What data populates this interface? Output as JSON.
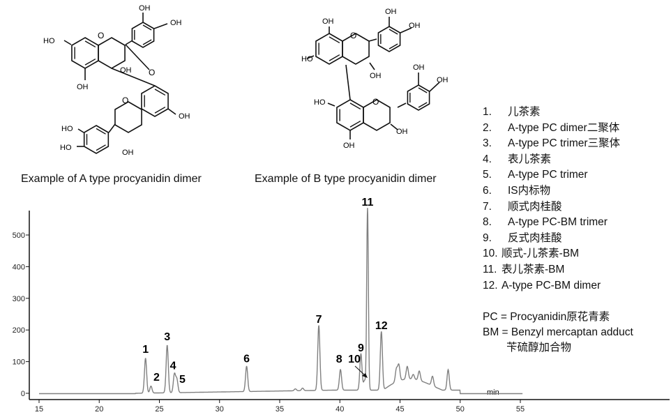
{
  "structures": {
    "a_caption": "Example of A type procyanidin dimer",
    "b_caption": "Example of B type procyanidin dimer",
    "oh_label": "OH",
    "ho_label": "HO"
  },
  "legend": [
    {
      "num": "1.",
      "text": "儿茶素"
    },
    {
      "num": "2.",
      "text": "A-type PC dimer二聚体"
    },
    {
      "num": "3.",
      "text": "A-type PC trimer三聚体"
    },
    {
      "num": "4.",
      "text": "表儿茶素"
    },
    {
      "num": "5.",
      "text": "A-type PC trimer"
    },
    {
      "num": "6.",
      "text": "IS内标物"
    },
    {
      "num": "7.",
      "text": "顺式肉桂酸"
    },
    {
      "num": "8.",
      "text": "A-type PC-BM trimer"
    },
    {
      "num": "9.",
      "text": "反式肉桂酸"
    },
    {
      "num": "10.",
      "text": "顺式-儿茶素-BM"
    },
    {
      "num": "11.",
      "text": "表儿茶素-BM"
    },
    {
      "num": "12.",
      "text": "A-type PC-BM dimer"
    }
  ],
  "notes": {
    "pc": "PC = Procyanidin原花青素",
    "bm": "BM = Benzyl mercaptan adduct",
    "bm_cn": "苄硫醇加合物"
  },
  "chart_data": {
    "type": "line",
    "title": "",
    "xlabel": "min",
    "ylabel": "",
    "xlim": [
      14.2,
      56.5
    ],
    "ylim": [
      -15,
      600
    ],
    "xticks": [
      15,
      20,
      25,
      30,
      35,
      40,
      45,
      50,
      55
    ],
    "yticks": [
      0,
      100,
      200,
      300,
      400,
      500
    ],
    "grid": false,
    "line_color": "#808080",
    "peaks": [
      {
        "label": "1",
        "rt": 23.85,
        "height": 110
      },
      {
        "label": "2",
        "rt": 24.3,
        "height": 22
      },
      {
        "label": "3",
        "rt": 25.65,
        "height": 150
      },
      {
        "label": "4",
        "rt": 26.25,
        "height": 58
      },
      {
        "label": "5",
        "rt": 26.45,
        "height": 42
      },
      {
        "label": "6",
        "rt": 32.25,
        "height": 80
      },
      {
        "label": "7",
        "rt": 38.25,
        "height": 205
      },
      {
        "label": "8",
        "rt": 40.05,
        "height": 65
      },
      {
        "label": "9",
        "rt": 41.75,
        "height": 115
      },
      {
        "label": "10",
        "rt": 42.05,
        "height": 30
      },
      {
        "label": "11",
        "rt": 42.3,
        "height": 575
      },
      {
        "label": "12",
        "rt": 43.45,
        "height": 185
      },
      {
        "label": "",
        "rt": 44.7,
        "height": 40
      },
      {
        "label": "",
        "rt": 44.9,
        "height": 50
      },
      {
        "label": "",
        "rt": 45.6,
        "height": 40
      },
      {
        "label": "",
        "rt": 46.1,
        "height": 15
      },
      {
        "label": "",
        "rt": 46.6,
        "height": 30
      },
      {
        "label": "",
        "rt": 47.7,
        "height": 30
      },
      {
        "label": "",
        "rt": 49.0,
        "height": 65
      },
      {
        "label": "",
        "rt": 36.3,
        "height": 6
      },
      {
        "label": "",
        "rt": 36.9,
        "height": 8
      }
    ]
  }
}
